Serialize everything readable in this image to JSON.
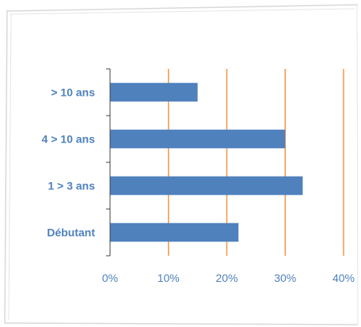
{
  "chart_data": {
    "type": "bar",
    "orientation": "horizontal",
    "categories": [
      "Débutant",
      "1 > 3 ans",
      "4 > 10 ans",
      "> 10 ans"
    ],
    "values": [
      22,
      33,
      30,
      15
    ],
    "xlim": [
      0,
      40
    ],
    "x_ticks": [
      0,
      10,
      20,
      30,
      40
    ],
    "x_tick_labels": [
      "0%",
      "10%",
      "20%",
      "30%",
      "40%"
    ],
    "grid": "vertical",
    "legend": "none",
    "title": "",
    "xlabel": "",
    "ylabel": "",
    "colors": {
      "bar": "#4f81bd",
      "gridline": "#f79646",
      "text": "#4f81bd",
      "axis": "#404040",
      "frame": "#d9d9d9"
    }
  }
}
